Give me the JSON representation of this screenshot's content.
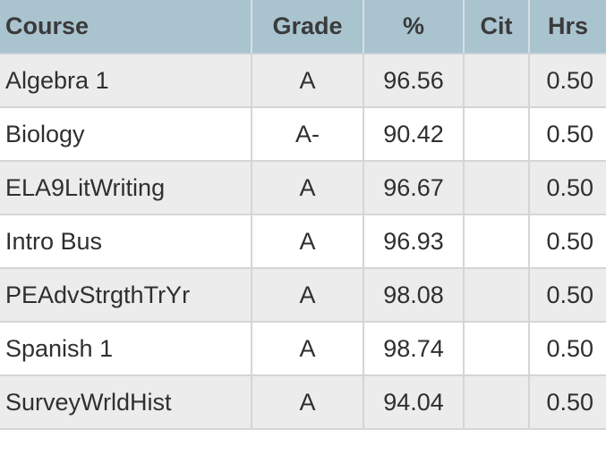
{
  "header": {
    "course": "Course",
    "grade": "Grade",
    "percent": "%",
    "cit": "Cit",
    "hrs": "Hrs"
  },
  "rows": [
    {
      "course": "Algebra 1",
      "grade": "A",
      "percent": "96.56",
      "cit": "",
      "hrs": "0.50"
    },
    {
      "course": "Biology",
      "grade": "A-",
      "percent": "90.42",
      "cit": "",
      "hrs": "0.50"
    },
    {
      "course": "ELA9LitWriting",
      "grade": "A",
      "percent": "96.67",
      "cit": "",
      "hrs": "0.50"
    },
    {
      "course": "Intro Bus",
      "grade": "A",
      "percent": "96.93",
      "cit": "",
      "hrs": "0.50"
    },
    {
      "course": "PEAdvStrgthTrYr",
      "grade": "A",
      "percent": "98.08",
      "cit": "",
      "hrs": "0.50"
    },
    {
      "course": "Spanish 1",
      "grade": "A",
      "percent": "98.74",
      "cit": "",
      "hrs": "0.50"
    },
    {
      "course": "SurveyWrldHist",
      "grade": "A",
      "percent": "94.04",
      "cit": "",
      "hrs": "0.50"
    }
  ],
  "colors": {
    "header_bg": "#a9c3cf",
    "row_alt_bg": "#ececec",
    "row_bg": "#ffffff"
  }
}
